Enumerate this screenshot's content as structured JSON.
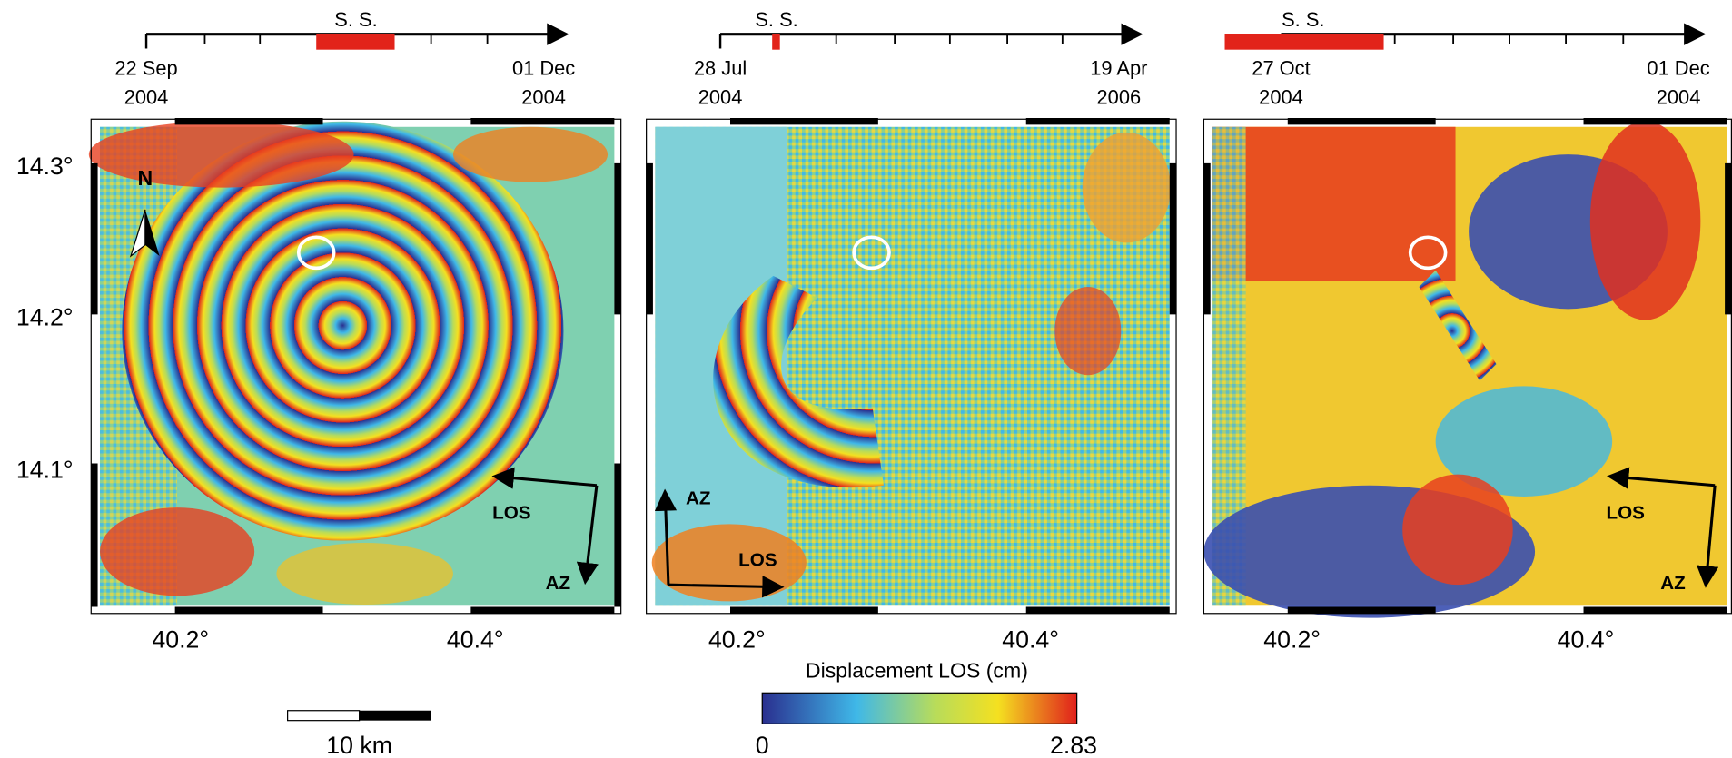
{
  "panels": [
    {
      "timeline": {
        "label": "S. S.",
        "start_date": "22 Sep",
        "start_year": "2004",
        "end_date": "01 Dec",
        "end_year": "2004"
      },
      "lon_labels": [
        "40.2°",
        "40.4°"
      ],
      "north": "N",
      "los": "LOS",
      "az": "AZ"
    },
    {
      "timeline": {
        "label": "S. S.",
        "start_date": "28 Jul",
        "start_year": "2004",
        "end_date": "19 Apr",
        "end_year": "2006"
      },
      "lon_labels": [
        "40.2°",
        "40.4°"
      ],
      "los": "LOS",
      "az": "AZ"
    },
    {
      "timeline": {
        "label": "S. S.",
        "start_date": "27 Oct",
        "start_year": "2004",
        "end_date": "01 Dec",
        "end_year": "2004"
      },
      "lon_labels": [
        "40.2°",
        "40.4°"
      ],
      "los": "LOS",
      "az": "AZ"
    }
  ],
  "lat_labels": [
    "14.3°",
    "14.2°",
    "14.1°"
  ],
  "scale_bar": "10 km",
  "colorbar": {
    "title": "Displacement LOS (cm)",
    "min": 0,
    "max": 2.83
  }
}
